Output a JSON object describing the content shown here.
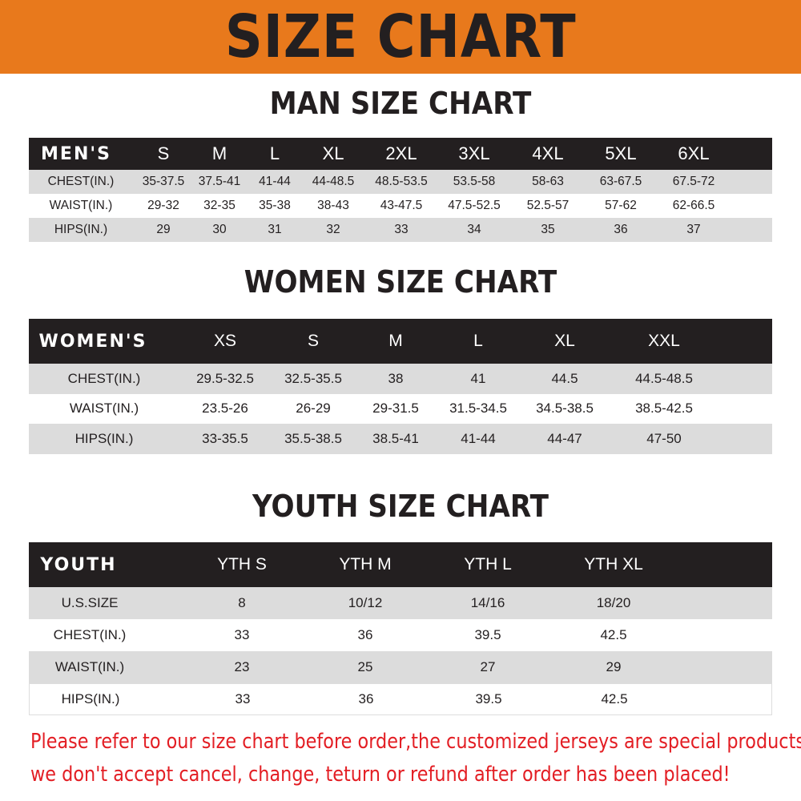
{
  "title": "SIZE CHART",
  "colors": {
    "banner": "#e8791c",
    "header_row": "#231f20",
    "stripe": "#dcdcdc",
    "note": "#e31e24"
  },
  "men": {
    "heading": "MAN SIZE CHART",
    "columns": [
      "MEN'S",
      "S",
      "M",
      "L",
      "XL",
      "2XL",
      "3XL",
      "4XL",
      "5XL",
      "6XL"
    ],
    "rows": [
      [
        "CHEST(IN.)",
        "35-37.5",
        "37.5-41",
        "41-44",
        "44-48.5",
        "48.5-53.5",
        "53.5-58",
        "58-63",
        "63-67.5",
        "67.5-72"
      ],
      [
        "WAIST(IN.)",
        "29-32",
        "32-35",
        "35-38",
        "38-43",
        "43-47.5",
        "47.5-52.5",
        "52.5-57",
        "57-62",
        "62-66.5"
      ],
      [
        "HIPS(IN.)",
        "29",
        "30",
        "31",
        "32",
        "33",
        "34",
        "35",
        "36",
        "37"
      ]
    ]
  },
  "women": {
    "heading": "WOMEN SIZE CHART",
    "columns": [
      "WOMEN'S",
      "XS",
      "S",
      "M",
      "L",
      "XL",
      "XXL"
    ],
    "rows": [
      [
        "CHEST(IN.)",
        "29.5-32.5",
        "32.5-35.5",
        "38",
        "41",
        "44.5",
        "44.5-48.5"
      ],
      [
        "WAIST(IN.)",
        "23.5-26",
        "26-29",
        "29-31.5",
        "31.5-34.5",
        "34.5-38.5",
        "38.5-42.5"
      ],
      [
        "HIPS(IN.)",
        "33-35.5",
        "35.5-38.5",
        "38.5-41",
        "41-44",
        "44-47",
        "47-50"
      ]
    ]
  },
  "youth": {
    "heading": "YOUTH SIZE CHART",
    "columns": [
      "YOUTH",
      "YTH S",
      "YTH M",
      "YTH L",
      "YTH XL"
    ],
    "rows": [
      [
        "U.S.SIZE",
        "8",
        "10/12",
        "14/16",
        "18/20"
      ],
      [
        "CHEST(IN.)",
        "33",
        "36",
        "39.5",
        "42.5"
      ],
      [
        "WAIST(IN.)",
        "23",
        "25",
        "27",
        "29"
      ],
      [
        "HIPS(IN.)",
        "33",
        "36",
        "39.5",
        "42.5"
      ]
    ]
  },
  "notice": [
    "Please refer to our size chart before order,the customized jerseys are special products,",
    "we don't accept cancel, change, teturn or refund after order has been placed!"
  ]
}
